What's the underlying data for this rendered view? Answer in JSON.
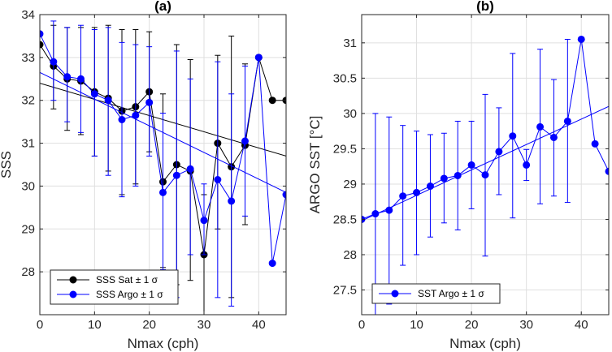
{
  "chart_data": [
    {
      "type": "line",
      "title": "(a)",
      "xlabel": "Nmax (cph)",
      "ylabel": "SSS",
      "xlim": [
        0,
        45
      ],
      "ylim": [
        27,
        34
      ],
      "xticks": [
        0,
        10,
        20,
        30,
        40
      ],
      "yticks": [
        28,
        29,
        30,
        31,
        32,
        33,
        34
      ],
      "xtick_labels": [
        "0",
        "10",
        "20",
        "30",
        "40"
      ],
      "ytick_labels": [
        "28",
        "29",
        "30",
        "31",
        "32",
        "33",
        "34"
      ],
      "grid": true,
      "legend_position": "bottom-left",
      "x": [
        0,
        2.5,
        5,
        7.5,
        10,
        12.5,
        15,
        17.5,
        20,
        22.5,
        25,
        27.5,
        30,
        32.5,
        35,
        37.5,
        40,
        42.5,
        45
      ],
      "series": [
        {
          "name": "SSS Sat ± 1 σ",
          "color": "#000000",
          "values": [
            33.3,
            32.8,
            32.5,
            32.45,
            32.2,
            32.05,
            31.75,
            31.85,
            32.2,
            30.1,
            30.5,
            30.35,
            28.4,
            31.0,
            30.45,
            30.95,
            33.0,
            32.0,
            32.0
          ],
          "err_low": [
            null,
            31.8,
            31.3,
            31.2,
            30.7,
            30.35,
            29.8,
            30.05,
            30.8,
            28.1,
            27.7,
            27.8,
            27.0,
            29.0,
            27.4,
            29.1,
            null,
            null,
            null
          ],
          "err_high": [
            null,
            33.75,
            33.7,
            33.7,
            33.7,
            33.75,
            33.65,
            33.65,
            33.6,
            32.15,
            33.3,
            32.95,
            29.8,
            33.05,
            33.5,
            32.85,
            null,
            null,
            null
          ],
          "fit": [
            32.4,
            30.7
          ]
        },
        {
          "name": "SSS Argo ± 1 σ",
          "color": "#0000ff",
          "values": [
            33.55,
            32.9,
            32.55,
            32.5,
            32.15,
            32.0,
            31.55,
            31.65,
            31.95,
            29.85,
            30.25,
            30.4,
            29.2,
            30.15,
            29.65,
            31.05,
            33.0,
            28.2,
            29.8
          ],
          "err_low": [
            null,
            32.0,
            31.5,
            31.25,
            30.7,
            30.25,
            29.75,
            30.0,
            30.7,
            28.05,
            27.4,
            28.4,
            28.4,
            27.4,
            27.2,
            29.3,
            null,
            null,
            null
          ],
          "err_high": [
            null,
            33.85,
            33.7,
            33.75,
            33.65,
            33.7,
            33.35,
            33.3,
            33.25,
            31.7,
            33.15,
            32.5,
            30.05,
            32.9,
            32.15,
            32.8,
            null,
            null,
            null
          ],
          "fit": [
            32.65,
            29.85
          ]
        }
      ]
    },
    {
      "type": "line",
      "title": "(b)",
      "xlabel": "Nmax (cph)",
      "ylabel": "ARGO SST [°C]",
      "xlim": [
        0,
        45
      ],
      "ylim": [
        27.15,
        31.4
      ],
      "xticks": [
        0,
        10,
        20,
        30,
        40
      ],
      "yticks": [
        27.5,
        28,
        28.5,
        29,
        29.5,
        30,
        30.5,
        31
      ],
      "xtick_labels": [
        "0",
        "10",
        "20",
        "30",
        "40"
      ],
      "ytick_labels": [
        "27.5",
        "28",
        "28.5",
        "29",
        "29.5",
        "30",
        "30.5",
        "31"
      ],
      "grid": true,
      "legend_position": "bottom-left",
      "x": [
        0,
        2.5,
        5,
        7.5,
        10,
        12.5,
        15,
        17.5,
        20,
        22.5,
        25,
        27.5,
        30,
        32.5,
        35,
        37.5,
        40,
        42.5,
        45
      ],
      "series": [
        {
          "name": "SST Argo ± 1 σ",
          "color": "#0000ff",
          "values": [
            28.5,
            28.58,
            28.63,
            28.83,
            28.88,
            28.97,
            29.08,
            29.12,
            29.27,
            29.13,
            29.46,
            29.68,
            29.27,
            29.81,
            29.66,
            29.89,
            31.05,
            29.57,
            29.18
          ],
          "err_low": [
            null,
            27.15,
            27.3,
            27.85,
            28.0,
            28.25,
            28.45,
            28.35,
            28.65,
            27.98,
            28.85,
            28.52,
            29.05,
            28.72,
            28.83,
            28.74,
            null,
            null,
            null
          ],
          "err_high": [
            null,
            30.0,
            29.95,
            29.83,
            29.75,
            29.7,
            29.72,
            29.89,
            29.89,
            30.27,
            30.08,
            30.85,
            29.49,
            30.91,
            30.48,
            31.05,
            null,
            null,
            null
          ],
          "fit": [
            28.48,
            30.1
          ]
        }
      ]
    }
  ]
}
